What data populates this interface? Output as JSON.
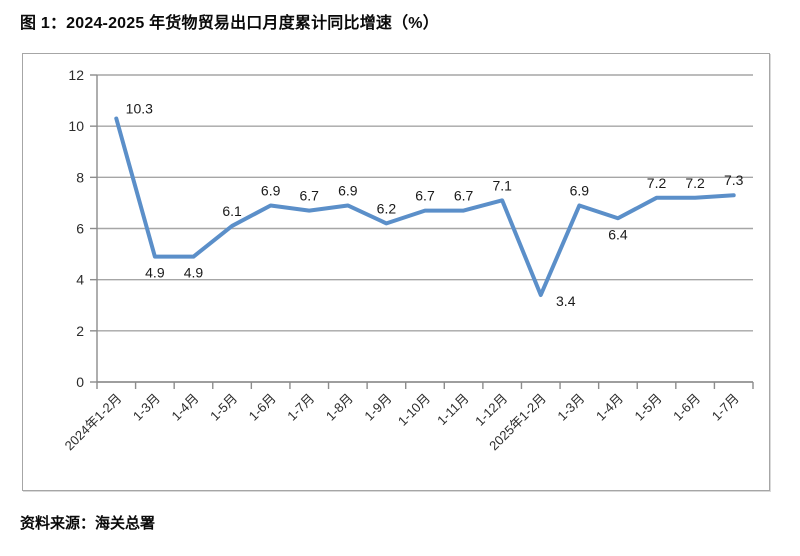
{
  "page": {
    "source_note": "资料来源：海关总署"
  },
  "chart_data": {
    "type": "line",
    "title": "图 1：2024-2025 年货物贸易出口月度累计同比增速（%）",
    "categories": [
      "2024年1-2月",
      "1-3月",
      "1-4月",
      "1-5月",
      "1-6月",
      "1-7月",
      "1-8月",
      "1-9月",
      "1-10月",
      "1-11月",
      "1-12月",
      "2025年1-2月",
      "1-3月",
      "1-4月",
      "1-5月",
      "1-6月",
      "1-7月"
    ],
    "values": [
      10.3,
      4.9,
      4.9,
      6.1,
      6.9,
      6.7,
      6.9,
      6.2,
      6.7,
      6.7,
      7.1,
      3.4,
      6.9,
      6.4,
      7.2,
      7.2,
      7.3
    ],
    "label_placement": [
      "right",
      "below",
      "below",
      "above",
      "above",
      "above",
      "above",
      "above",
      "above",
      "above",
      "above",
      "below-right",
      "above",
      "below",
      "above",
      "above",
      "above"
    ],
    "xlabel": "",
    "ylabel": "",
    "ylim": [
      0,
      12
    ],
    "ytick_step": 2,
    "grid": true,
    "legend": "none",
    "line_color": "#5b8fc9",
    "gridline_color": "#a6a6a6",
    "axis_color": "#8c8c8c",
    "data_label_color": "#1a1a1a"
  }
}
